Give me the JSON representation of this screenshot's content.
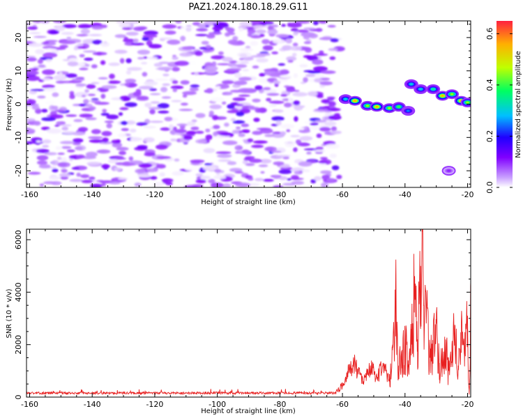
{
  "title": "PAZ1.2024.180.18.29.G11",
  "chart_data": [
    {
      "type": "heatmap",
      "xlabel": "Height of straight line (km)",
      "ylabel": "Frequency (Hz)",
      "xlim": [
        -161,
        -19
      ],
      "ylim": [
        -25,
        25
      ],
      "x_ticks": [
        -160,
        -140,
        -120,
        -100,
        -80,
        -60,
        -40,
        -20
      ],
      "y_ticks": [
        -20,
        -10,
        0,
        10,
        20
      ],
      "colorbar": {
        "label": "Normalized spectral amplitude",
        "range": [
          0,
          0.65
        ],
        "ticks": [
          0.0,
          0.2,
          0.4,
          0.6
        ],
        "colors": [
          "#ffffff",
          "#c9a0ff",
          "#8000ff",
          "#2000ff",
          "#00c0ff",
          "#00ff60",
          "#c0ff00",
          "#ffb000",
          "#ff2040"
        ]
      },
      "noise_region": {
        "x_range": [
          -161,
          -61
        ],
        "y_range": [
          -25,
          25
        ],
        "amplitude_range": [
          0.0,
          0.15
        ]
      },
      "signal_trace": [
        {
          "x": -59,
          "y": 1.5,
          "amp": 0.3
        },
        {
          "x": -56,
          "y": 1.0,
          "amp": 0.55
        },
        {
          "x": -52,
          "y": -0.5,
          "amp": 0.45
        },
        {
          "x": -49,
          "y": -0.8,
          "amp": 0.55
        },
        {
          "x": -45,
          "y": -1.2,
          "amp": 0.45
        },
        {
          "x": -42,
          "y": -0.8,
          "amp": 0.4
        },
        {
          "x": -39,
          "y": -2.0,
          "amp": 0.25
        },
        {
          "x": -38,
          "y": 6.0,
          "amp": 0.3
        },
        {
          "x": -35,
          "y": 4.5,
          "amp": 0.3
        },
        {
          "x": -31,
          "y": 4.5,
          "amp": 0.35
        },
        {
          "x": -28,
          "y": 2.5,
          "amp": 0.55
        },
        {
          "x": -25,
          "y": 3.0,
          "amp": 0.45
        },
        {
          "x": -22,
          "y": 1.0,
          "amp": 0.55
        },
        {
          "x": -20,
          "y": 0.5,
          "amp": 0.45
        },
        {
          "x": -26,
          "y": -20.0,
          "amp": 0.1
        }
      ]
    },
    {
      "type": "line",
      "xlabel": "Height of straight line (km)",
      "ylabel": "SNR (10 * v/v)",
      "xlim": [
        -161,
        -19
      ],
      "ylim": [
        0,
        6400
      ],
      "x_ticks": [
        -160,
        -140,
        -120,
        -100,
        -80,
        -60,
        -40,
        -20
      ],
      "y_ticks": [
        0,
        2000,
        4000,
        6000
      ],
      "line_color": "#e82020",
      "x": [
        -161,
        -150,
        -140,
        -130,
        -120,
        -110,
        -100,
        -90,
        -80,
        -70,
        -62,
        -60,
        -58,
        -56,
        -55,
        -53,
        -51,
        -49,
        -47,
        -45,
        -44,
        -43,
        -42,
        -41,
        -40,
        -39,
        -38,
        -37,
        -36,
        -35,
        -34.5,
        -34,
        -33,
        -32,
        -31,
        -30,
        -29,
        -28,
        -27,
        -26,
        -25,
        -24,
        -23,
        -22,
        -21,
        -20,
        -19.5,
        -19
      ],
      "y": [
        120,
        130,
        140,
        120,
        150,
        130,
        140,
        120,
        150,
        130,
        200,
        500,
        1000,
        1450,
        900,
        700,
        1200,
        800,
        1300,
        600,
        2000,
        4250,
        1200,
        1800,
        2500,
        1400,
        2600,
        4500,
        2200,
        5000,
        6300,
        3500,
        3800,
        1500,
        2300,
        2800,
        1300,
        1500,
        2200,
        1000,
        2000,
        2700,
        1200,
        2800,
        1600,
        3100,
        100,
        4400
      ]
    }
  ]
}
